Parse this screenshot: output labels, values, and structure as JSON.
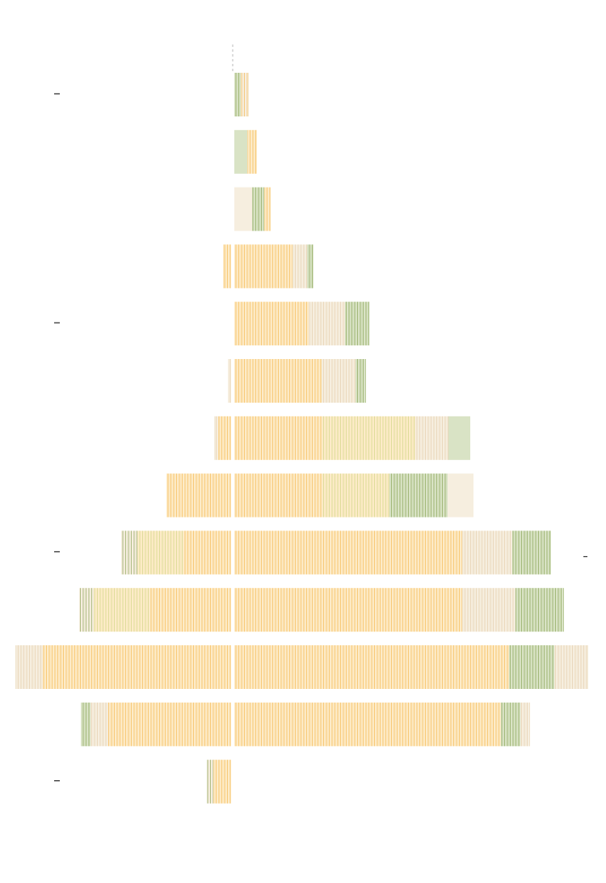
{
  "chart_data": {
    "type": "bar",
    "title": "",
    "xlabel": "",
    "ylabel": "",
    "grid": false,
    "legend": "none",
    "orientation": "horizontal",
    "layout": "diverging-stacked",
    "bar_style": "striped",
    "rows": 13,
    "colors": {
      "orange": "#f5b240",
      "peach": "#fdebc8",
      "cream": "#f6eedf",
      "tan": "#e2c9a4",
      "yellow_green": "#c9d27a",
      "light_green": "#d9e3c5",
      "green": "#7d9a45",
      "baseline": "#bbbbbb",
      "tick": "#222222"
    },
    "series": [
      {
        "row": 0,
        "left": [],
        "right": [
          {
            "length": 8,
            "color": "light_green",
            "stripes": "green"
          },
          {
            "length": 10,
            "color": "cream",
            "stripes": "orange"
          }
        ]
      },
      {
        "row": 1,
        "left": [],
        "right": [
          {
            "length": 16,
            "color": "light_green",
            "stripes": "none"
          },
          {
            "length": 12,
            "color": "peach",
            "stripes": "orange"
          }
        ]
      },
      {
        "row": 2,
        "left": [],
        "right": [
          {
            "length": 22,
            "color": "cream",
            "stripes": "none"
          },
          {
            "length": 15,
            "color": "light_green",
            "stripes": "green"
          },
          {
            "length": 8,
            "color": "peach",
            "stripes": "orange"
          }
        ]
      },
      {
        "row": 3,
        "left": [
          {
            "length": 10,
            "color": "peach",
            "stripes": "orange"
          }
        ],
        "right": [
          {
            "length": 72,
            "color": "peach",
            "stripes": "orange"
          },
          {
            "length": 18,
            "color": "cream",
            "stripes": "tan"
          },
          {
            "length": 8,
            "color": "light_green",
            "stripes": "green"
          }
        ]
      },
      {
        "row": 4,
        "left": [],
        "right": [
          {
            "length": 92,
            "color": "peach",
            "stripes": "orange"
          },
          {
            "length": 45,
            "color": "cream",
            "stripes": "tan"
          },
          {
            "length": 30,
            "color": "light_green",
            "stripes": "green"
          }
        ]
      },
      {
        "row": 5,
        "left": [
          {
            "length": 4,
            "color": "cream",
            "stripes": "tan"
          }
        ],
        "right": [
          {
            "length": 108,
            "color": "peach",
            "stripes": "orange"
          },
          {
            "length": 42,
            "color": "cream",
            "stripes": "tan"
          },
          {
            "length": 13,
            "color": "light_green",
            "stripes": "green"
          }
        ]
      },
      {
        "row": 6,
        "left": [
          {
            "length": 16,
            "color": "peach",
            "stripes": "orange"
          },
          {
            "length": 5,
            "color": "cream",
            "stripes": "tan"
          }
        ],
        "right": [
          {
            "length": 108,
            "color": "peach",
            "stripes": "orange"
          },
          {
            "length": 116,
            "color": "peach",
            "stripes": "yellow_green"
          },
          {
            "length": 41,
            "color": "cream",
            "stripes": "tan"
          },
          {
            "length": 27,
            "color": "light_green",
            "stripes": "none"
          }
        ]
      },
      {
        "row": 7,
        "left": [
          {
            "length": 80,
            "color": "peach",
            "stripes": "orange"
          }
        ],
        "right": [
          {
            "length": 108,
            "color": "peach",
            "stripes": "orange"
          },
          {
            "length": 84,
            "color": "peach",
            "stripes": "yellow_green"
          },
          {
            "length": 72,
            "color": "light_green",
            "stripes": "green"
          },
          {
            "length": 32,
            "color": "cream",
            "stripes": "none"
          }
        ]
      },
      {
        "row": 8,
        "left": [
          {
            "length": 58,
            "color": "peach",
            "stripes": "orange"
          },
          {
            "length": 58,
            "color": "peach",
            "stripes": "yellow_green"
          },
          {
            "length": 20,
            "color": "cream",
            "stripes": "green"
          }
        ],
        "right": [
          {
            "length": 282,
            "color": "peach",
            "stripes": "orange"
          },
          {
            "length": 62,
            "color": "cream",
            "stripes": "tan"
          },
          {
            "length": 48,
            "color": "light_green",
            "stripes": "green"
          }
        ]
      },
      {
        "row": 9,
        "left": [
          {
            "length": 100,
            "color": "peach",
            "stripes": "orange"
          },
          {
            "length": 70,
            "color": "peach",
            "stripes": "yellow_green"
          },
          {
            "length": 18,
            "color": "cream",
            "stripes": "green"
          }
        ],
        "right": [
          {
            "length": 282,
            "color": "peach",
            "stripes": "orange"
          },
          {
            "length": 66,
            "color": "cream",
            "stripes": "tan"
          },
          {
            "length": 60,
            "color": "light_green",
            "stripes": "green"
          }
        ]
      },
      {
        "row": 10,
        "left": [
          {
            "length": 178,
            "color": "peach",
            "stripes": "orange"
          },
          {
            "length": 55,
            "color": "peach",
            "stripes": "orange"
          },
          {
            "length": 34,
            "color": "cream",
            "stripes": "tan"
          }
        ],
        "right": [
          {
            "length": 340,
            "color": "peach",
            "stripes": "orange"
          },
          {
            "length": 56,
            "color": "light_green",
            "stripes": "green"
          },
          {
            "length": 42,
            "color": "cream",
            "stripes": "tan"
          }
        ]
      },
      {
        "row": 11,
        "left": [
          {
            "length": 152,
            "color": "peach",
            "stripes": "orange"
          },
          {
            "length": 22,
            "color": "cream",
            "stripes": "tan"
          },
          {
            "length": 12,
            "color": "light_green",
            "stripes": "green"
          }
        ],
        "right": [
          {
            "length": 330,
            "color": "peach",
            "stripes": "orange"
          },
          {
            "length": 24,
            "color": "light_green",
            "stripes": "green"
          },
          {
            "length": 12,
            "color": "cream",
            "stripes": "tan"
          }
        ]
      },
      {
        "row": 12,
        "left": [
          {
            "length": 22,
            "color": "peach",
            "stripes": "orange"
          },
          {
            "length": 8,
            "color": "cream",
            "stripes": "green"
          }
        ],
        "right": []
      }
    ],
    "y_ticks": [
      {
        "row": 0
      },
      {
        "row": 4
      },
      {
        "row": 8
      },
      {
        "row": 12
      }
    ],
    "right_ticks": [
      {
        "row": 8
      }
    ]
  }
}
